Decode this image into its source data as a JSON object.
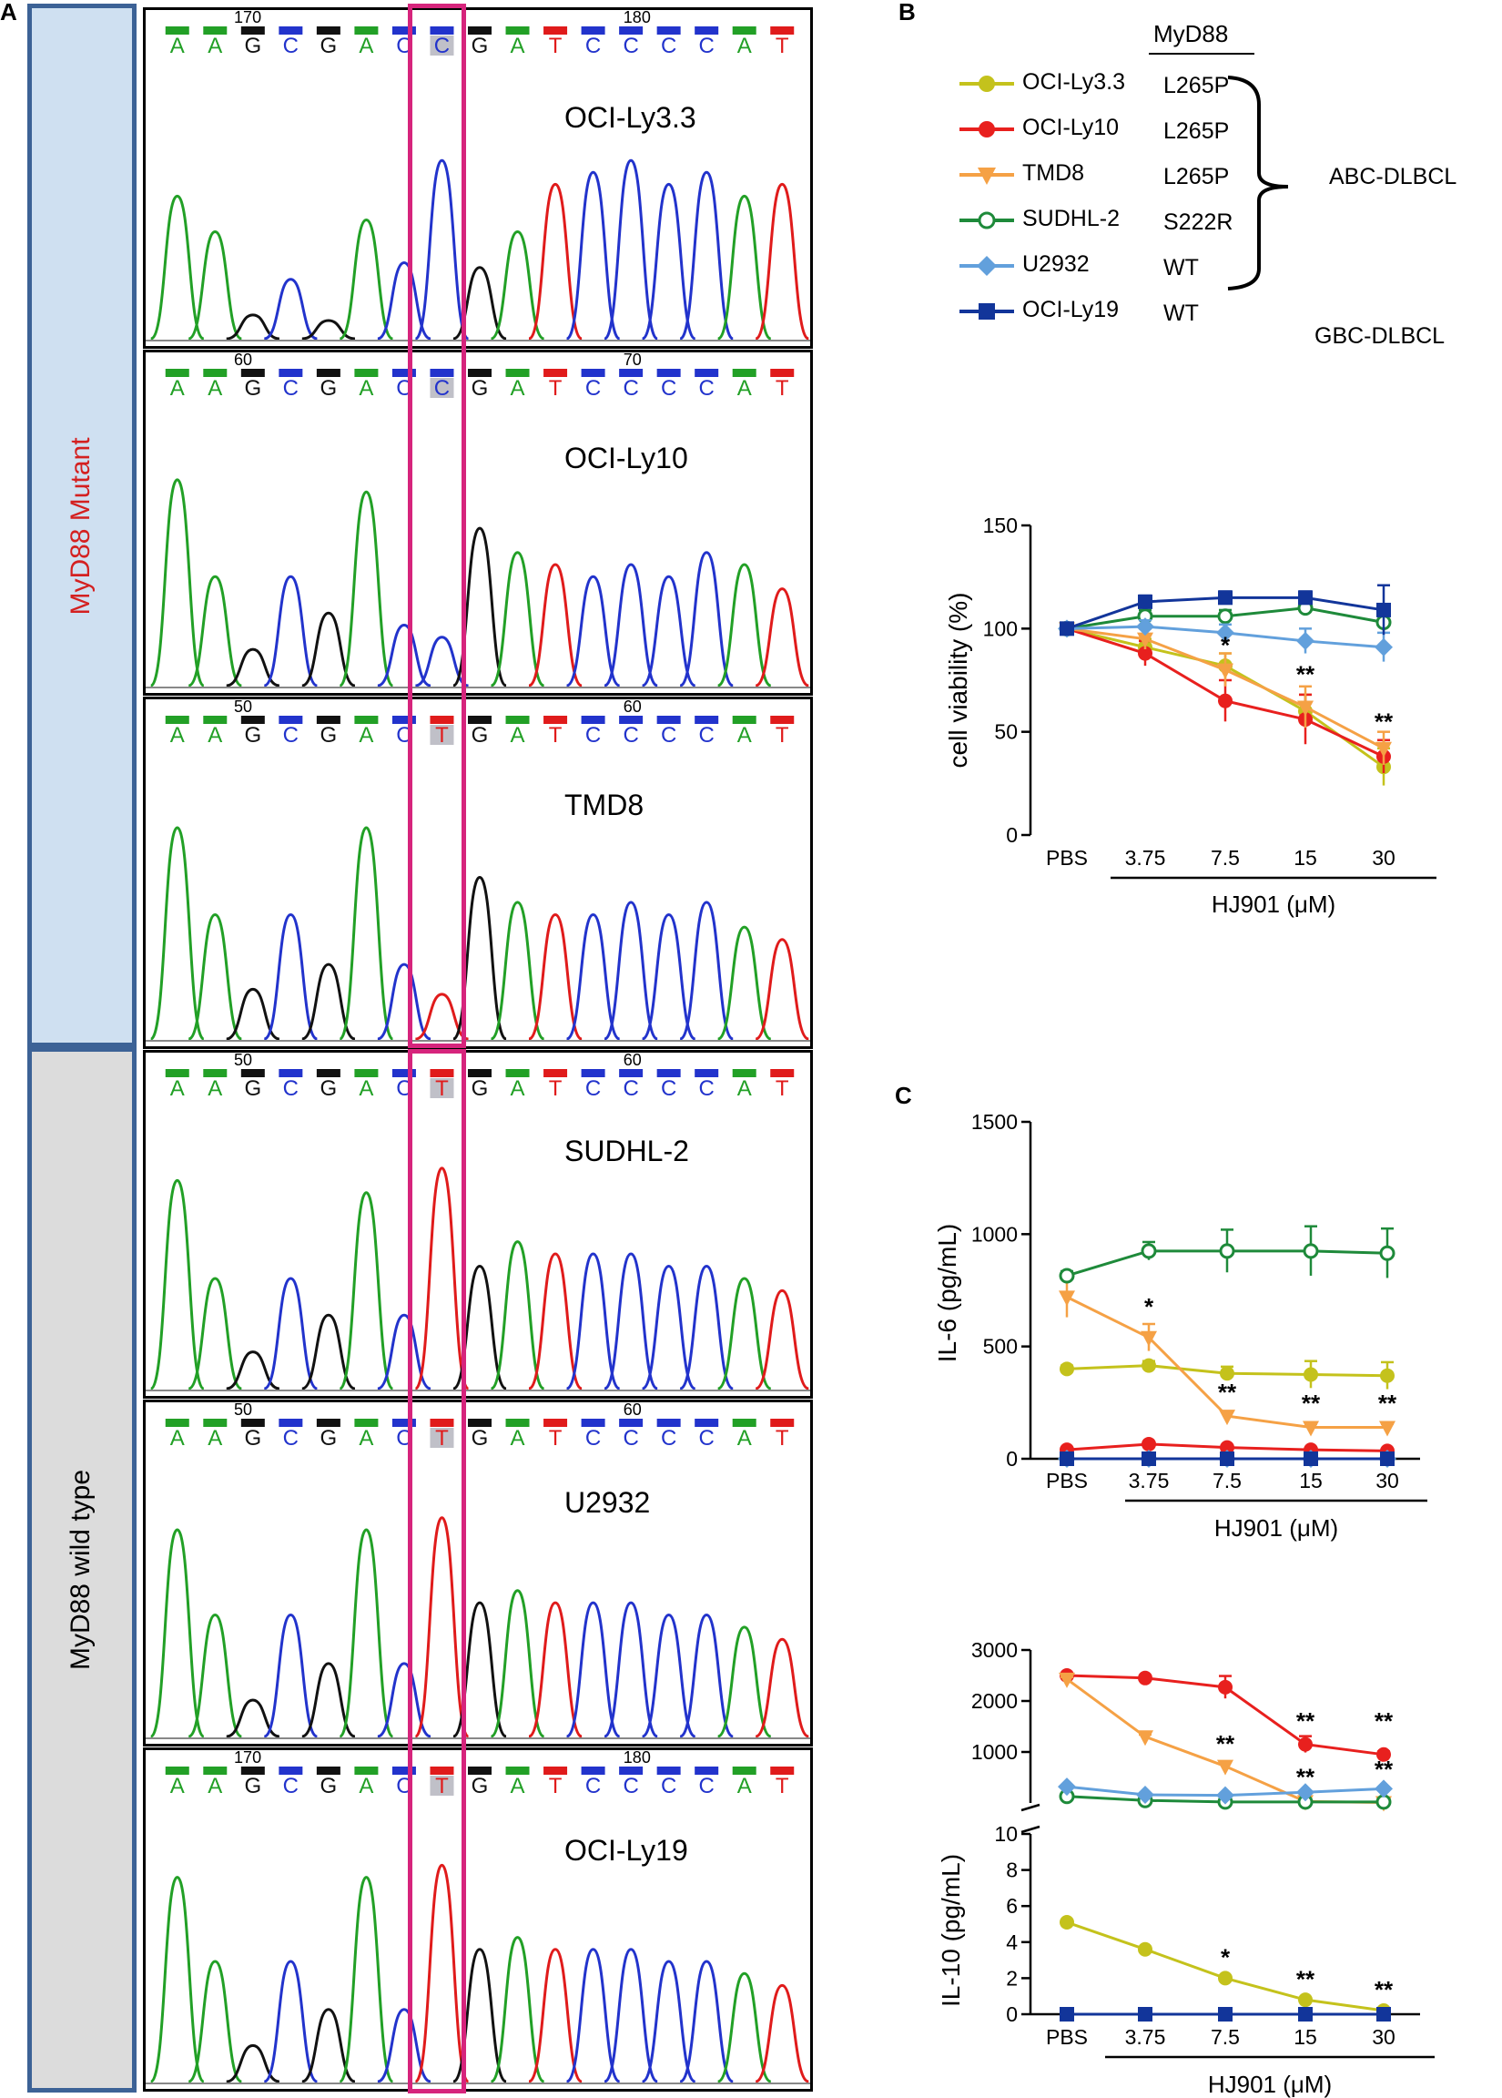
{
  "panels": {
    "a": "A",
    "b": "B",
    "c": "C"
  },
  "groups": {
    "mutant": "MyD88 Mutant",
    "wildtype": "MyD88 wild type"
  },
  "colors": {
    "A": "#22a026",
    "C": "#2233cc",
    "G": "#111111",
    "T": "#e01b1b",
    "highlight": "#d6247c",
    "group_border": "#3c6296",
    "mutant_bg": "#cfe0f1",
    "wildtype_bg": "#dcdcdc"
  },
  "traces": [
    {
      "cell": "OCI-Ly3.3",
      "pos_left": "170",
      "pos_right": "180",
      "seq": [
        "A",
        "A",
        "G",
        "C",
        "G",
        "A",
        "C",
        "C",
        "G",
        "A",
        "T",
        "C",
        "C",
        "C",
        "C",
        "A",
        "T"
      ]
    },
    {
      "cell": "OCI-Ly10",
      "pos_left": "60",
      "pos_right": "70",
      "seq": [
        "A",
        "A",
        "G",
        "C",
        "G",
        "A",
        "C",
        "C",
        "G",
        "A",
        "T",
        "C",
        "C",
        "C",
        "C",
        "A",
        "T"
      ]
    },
    {
      "cell": "TMD8",
      "pos_left": "50",
      "pos_right": "60",
      "seq": [
        "A",
        "A",
        "G",
        "C",
        "G",
        "A",
        "C",
        "T",
        "G",
        "A",
        "T",
        "C",
        "C",
        "C",
        "C",
        "A",
        "T"
      ]
    },
    {
      "cell": "SUDHL-2",
      "pos_left": "50",
      "pos_right": "60",
      "seq": [
        "A",
        "A",
        "G",
        "C",
        "G",
        "A",
        "C",
        "T",
        "G",
        "A",
        "T",
        "C",
        "C",
        "C",
        "C",
        "A",
        "T"
      ]
    },
    {
      "cell": "U2932",
      "pos_left": "50",
      "pos_right": "60",
      "seq": [
        "A",
        "A",
        "G",
        "C",
        "G",
        "A",
        "C",
        "T",
        "G",
        "A",
        "T",
        "C",
        "C",
        "C",
        "C",
        "A",
        "T"
      ]
    },
    {
      "cell": "OCI-Ly19",
      "pos_left": "170",
      "pos_right": "180",
      "seq": [
        "A",
        "A",
        "G",
        "C",
        "G",
        "A",
        "C",
        "T",
        "G",
        "A",
        "T",
        "C",
        "C",
        "C",
        "C",
        "A",
        "T"
      ]
    }
  ],
  "legend": {
    "header": "MyD88",
    "items": [
      {
        "name": "OCI-Ly3.3",
        "mutation": "L265P",
        "color": "#c4c21c",
        "marker": "circle"
      },
      {
        "name": "OCI-Ly10",
        "mutation": "L265P",
        "color": "#e8201e",
        "marker": "circle"
      },
      {
        "name": "TMD8",
        "mutation": "L265P",
        "color": "#f5a145",
        "marker": "triangle-down"
      },
      {
        "name": "SUDHL-2",
        "mutation": "S222R",
        "color": "#1e8a3a",
        "marker": "open-circle"
      },
      {
        "name": "U2932",
        "mutation": "WT",
        "color": "#62a0dc",
        "marker": "diamond"
      },
      {
        "name": "OCI-Ly19",
        "mutation": "WT",
        "color": "#12359a",
        "marker": "square"
      }
    ],
    "abc_label": "ABC-DLBCL",
    "gbc_label": "GBC-DLBCL"
  },
  "chart_data": [
    {
      "type": "line",
      "title": "",
      "ylabel": "cell viability (%)",
      "xlabel": "HJ901 (μM)",
      "categories": [
        "PBS",
        "3.75",
        "7.5",
        "15",
        "30"
      ],
      "ylim": [
        0,
        150
      ],
      "yticks": [
        0,
        50,
        100,
        150
      ],
      "series": [
        {
          "name": "OCI-Ly3.3",
          "values": [
            100,
            91,
            82,
            60,
            33
          ],
          "errors": [
            2,
            4,
            6,
            8,
            9
          ]
        },
        {
          "name": "OCI-Ly10",
          "values": [
            100,
            88,
            65,
            56,
            38
          ],
          "errors": [
            2,
            6,
            10,
            12,
            8
          ]
        },
        {
          "name": "TMD8",
          "values": [
            100,
            95,
            80,
            62,
            42
          ],
          "errors": [
            2,
            5,
            8,
            10,
            8
          ]
        },
        {
          "name": "SUDHL-2",
          "values": [
            100,
            106,
            106,
            110,
            103
          ],
          "errors": [
            2,
            3,
            3,
            3,
            4
          ]
        },
        {
          "name": "U2932",
          "values": [
            100,
            101,
            98,
            94,
            91
          ],
          "errors": [
            2,
            3,
            4,
            6,
            7
          ]
        },
        {
          "name": "OCI-Ly19",
          "values": [
            100,
            113,
            115,
            115,
            109
          ],
          "errors": [
            2,
            3,
            3,
            3,
            12
          ]
        }
      ],
      "annotations": [
        {
          "category": "7.5",
          "y": 88,
          "text": "*"
        },
        {
          "category": "15",
          "y": 74,
          "text": "**"
        },
        {
          "category": "30",
          "y": 51,
          "text": "**"
        }
      ]
    },
    {
      "type": "line",
      "ylabel": "IL-6 (pg/mL)",
      "xlabel": "HJ901 (μM)",
      "categories": [
        "PBS",
        "3.75",
        "7.5",
        "15",
        "30"
      ],
      "ylim": [
        0,
        1500
      ],
      "yticks": [
        0,
        500,
        1000,
        1500
      ],
      "series": [
        {
          "name": "OCI-Ly3.3",
          "values": [
            400,
            415,
            380,
            375,
            370
          ],
          "errors": [
            15,
            20,
            30,
            60,
            60
          ]
        },
        {
          "name": "OCI-Ly10",
          "values": [
            40,
            65,
            50,
            40,
            35
          ],
          "errors": [
            5,
            8,
            8,
            6,
            6
          ]
        },
        {
          "name": "TMD8",
          "values": [
            720,
            540,
            190,
            140,
            140
          ],
          "errors": [
            90,
            60,
            20,
            15,
            15
          ]
        },
        {
          "name": "SUDHL-2",
          "values": [
            815,
            925,
            925,
            925,
            915
          ],
          "errors": [
            20,
            40,
            95,
            110,
            110
          ]
        },
        {
          "name": "U2932",
          "values": [
            0,
            0,
            0,
            0,
            0
          ],
          "errors": [
            0,
            0,
            0,
            0,
            0
          ]
        },
        {
          "name": "OCI-Ly19",
          "values": [
            0,
            0,
            0,
            0,
            0
          ],
          "errors": [
            0,
            0,
            0,
            0,
            0
          ]
        }
      ],
      "annotations": [
        {
          "category": "3.75",
          "y": 640,
          "text": "*"
        },
        {
          "category": "7.5",
          "y": 260,
          "text": "**"
        },
        {
          "category": "15",
          "y": 210,
          "text": "**"
        },
        {
          "category": "30",
          "y": 210,
          "text": "**"
        }
      ]
    },
    {
      "type": "line",
      "ylabel": "IL-10 (pg/mL)",
      "xlabel": "HJ901 (μM)",
      "categories": [
        "PBS",
        "3.75",
        "7.5",
        "15",
        "30"
      ],
      "broken_axis": true,
      "ylim_upper": [
        0,
        3000
      ],
      "yticks_upper": [
        1000,
        2000,
        3000
      ],
      "ylim_lower": [
        0,
        10
      ],
      "yticks_lower": [
        0,
        2,
        4,
        6,
        8,
        10
      ],
      "series_upper": [
        {
          "name": "OCI-Ly10",
          "values": [
            2500,
            2450,
            2270,
            1150,
            950
          ],
          "errors": [
            40,
            40,
            220,
            160,
            60
          ]
        },
        {
          "name": "TMD8",
          "values": [
            2430,
            1300,
            720,
            30,
            10
          ],
          "errors": [
            40,
            40,
            90,
            20,
            10
          ]
        },
        {
          "name": "SUDHL-2",
          "values": [
            130,
            50,
            20,
            20,
            20
          ],
          "errors": [
            10,
            10,
            10,
            10,
            10
          ]
        },
        {
          "name": "U2932",
          "values": [
            320,
            160,
            150,
            210,
            280
          ],
          "errors": [
            20,
            20,
            20,
            30,
            30
          ]
        }
      ],
      "series_lower": [
        {
          "name": "OCI-Ly3.3",
          "values": [
            5.1,
            3.6,
            2.0,
            0.8,
            0.2
          ],
          "errors": [
            0.1,
            0.1,
            0.1,
            0.1,
            0.1
          ]
        },
        {
          "name": "OCI-Ly19",
          "values": [
            0,
            0,
            0,
            0,
            0
          ],
          "errors": [
            0,
            0,
            0,
            0,
            0
          ]
        }
      ],
      "annotations_upper": [
        {
          "category": "7.5",
          "y": 1000,
          "text": "**"
        },
        {
          "category": "15",
          "y": 1450,
          "text": "**"
        },
        {
          "category": "15",
          "y": 350,
          "text": "**"
        },
        {
          "category": "30",
          "y": 1450,
          "text": "**"
        },
        {
          "category": "30",
          "y": 500,
          "text": "**"
        }
      ],
      "annotations_lower": [
        {
          "category": "7.5",
          "y": 2.7,
          "text": "*"
        },
        {
          "category": "15",
          "y": 1.5,
          "text": "**"
        },
        {
          "category": "30",
          "y": 0.9,
          "text": "**"
        }
      ]
    }
  ]
}
